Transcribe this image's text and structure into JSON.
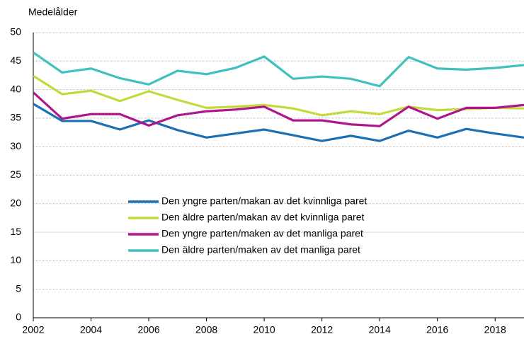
{
  "chart_data": {
    "type": "line",
    "y_label": "Medelålder",
    "x": [
      2002,
      2003,
      2004,
      2005,
      2006,
      2007,
      2008,
      2009,
      2010,
      2011,
      2012,
      2013,
      2014,
      2015,
      2016,
      2017,
      2018,
      2019
    ],
    "series": [
      {
        "name": "Den yngre parten/makan av det kvinnliga paret",
        "color": "#1c6fb3",
        "values": [
          37.5,
          34.5,
          34.5,
          33,
          34.6,
          32.9,
          31.6,
          32.3,
          33,
          32,
          31,
          31.9,
          31,
          32.8,
          31.6,
          33.1,
          32.3,
          31.6
        ]
      },
      {
        "name": "Den äldre parten/makan av det kvinnliga paret",
        "color": "#c5d93a",
        "values": [
          42.4,
          39.2,
          39.8,
          38,
          39.7,
          38.2,
          36.8,
          37,
          37.3,
          36.7,
          35.5,
          36.2,
          35.7,
          37,
          36.4,
          36.6,
          36.8,
          36.7
        ]
      },
      {
        "name": "Den yngre parten/maken av det manliga paret",
        "color": "#b0168c",
        "values": [
          39.5,
          34.9,
          35.7,
          35.7,
          33.7,
          35.5,
          36.2,
          36.5,
          37,
          34.6,
          34.6,
          33.9,
          33.6,
          37,
          34.9,
          36.8,
          36.8,
          37.3
        ]
      },
      {
        "name": "Den äldre parten/maken av det manliga paret",
        "color": "#3fc2bf",
        "values": [
          46.5,
          43,
          43.7,
          42,
          40.9,
          43.3,
          42.7,
          43.8,
          45.8,
          41.9,
          42.3,
          41.9,
          40.6,
          45.7,
          43.7,
          43.5,
          43.8,
          44.3
        ]
      }
    ],
    "xlim": [
      2002,
      2019
    ],
    "xticks": [
      2002,
      2004,
      2006,
      2008,
      2010,
      2012,
      2014,
      2016,
      2018
    ],
    "ylim": [
      0,
      50
    ],
    "yticks": [
      0,
      5,
      10,
      15,
      20,
      25,
      30,
      35,
      40,
      45,
      50
    ],
    "grid": true
  }
}
